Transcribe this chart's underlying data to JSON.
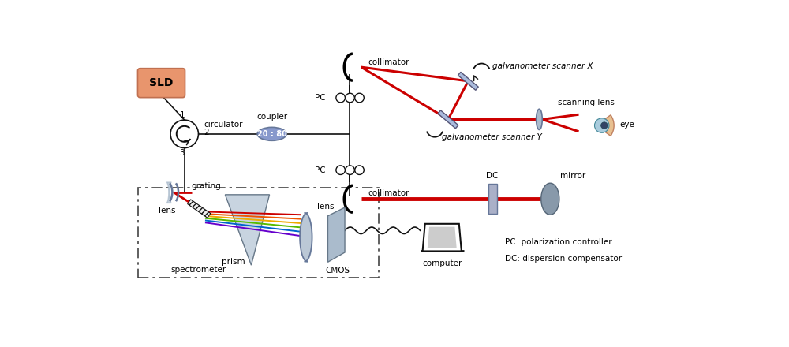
{
  "fig_width": 10.0,
  "fig_height": 4.4,
  "dpi": 100,
  "bg_color": "#ffffff",
  "sld_color": "#e8956d",
  "sld_edge": "#c07050",
  "coupler_color": "#8899cc",
  "coupler_edge": "#667799",
  "dc_color": "#aab0c8",
  "dc_edge": "#667799",
  "mirror_color": "#8899aa",
  "mirror_edge": "#556677",
  "lens_color": "#aabbcc",
  "lens_edge": "#667799",
  "galv_color": "#aabbdd",
  "galv_edge": "#555577",
  "line_color": "#111111",
  "red_color": "#cc0000",
  "labels": {
    "sld": "SLD",
    "circulator": "circulator",
    "coupler": "coupler",
    "coupler_ratio": "20 : 80",
    "collimator_top": "collimator",
    "collimator_bot": "collimator",
    "galv_x": "galvanometer scanner X",
    "galv_y": "galvanometer scanner Y",
    "scanning_lens": "scanning lens",
    "eye": "eye",
    "pc": "PC",
    "grating": "grating",
    "lens_left": "lens",
    "lens_right": "lens",
    "prism": "prism",
    "cmos": "CMOS",
    "spectrometer": "spectrometer",
    "computer": "computer",
    "dc_label": "DC",
    "mirror_label": "mirror",
    "note1": "PC: polarization controller",
    "note2": "DC: dispersion compensator"
  }
}
